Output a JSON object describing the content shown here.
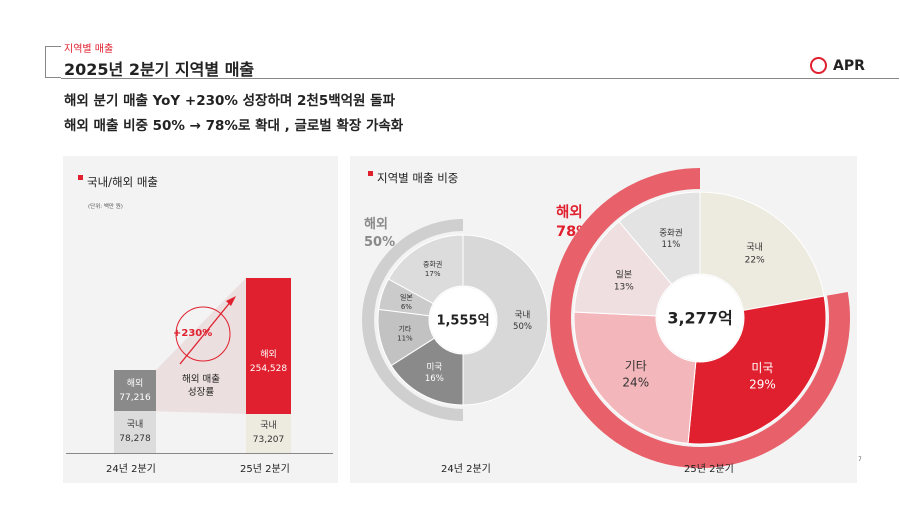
{
  "header": {
    "section_label": "지역별 매출",
    "title": "2025년 2분기 지역별 매출",
    "brand": "APR"
  },
  "headlines": [
    "해외 분기 매출 YoY +230% 성장하며 2천5백억원 돌파",
    "해외 매출 비중 50% → 78%로 확대 , 글로벌 확장 가속화"
  ],
  "colors": {
    "accent": "#e0202e",
    "overseas_prev": "#8a8a8a",
    "domestic_prev": "#dcdcdc",
    "domestic_curr": "#edeae0"
  },
  "left_panel": {
    "title": "국내/해외 매출",
    "unit": "(단위: 백만 원)",
    "growth_badge": "+230%",
    "growth_label_line1": "해외 매출",
    "growth_label_line2": "성장률"
  },
  "right_panel": {
    "title": "지역별 매출 비중",
    "q24_big_label": "해외",
    "q24_big_value": "50%",
    "q24_total": "1,555억",
    "q25_big_label": "해외",
    "q25_big_value": "78%",
    "q25_total": "3,277억"
  },
  "page_number": "7",
  "chart_data": [
    {
      "type": "bar",
      "title": "국내/해외 매출",
      "categories": [
        "24년 2분기",
        "25년 2분기"
      ],
      "series": [
        {
          "name": "국내",
          "values": [
            78278,
            73207
          ]
        },
        {
          "name": "해외",
          "values": [
            77216,
            254528
          ]
        }
      ],
      "value_labels": {
        "국내": [
          "78,278",
          "73,207"
        ],
        "해외": [
          "77,216",
          "254,528"
        ]
      },
      "stacked": true
    },
    {
      "type": "pie",
      "title": "지역별 매출 비중",
      "category": "24년 2분기",
      "slices": [
        {
          "label": "국내",
          "value": 50,
          "text": "50%"
        },
        {
          "label": "미국",
          "value": 16,
          "text": "16%"
        },
        {
          "label": "기타",
          "value": 11,
          "text": "11%"
        },
        {
          "label": "일본",
          "value": 6,
          "text": "6%"
        },
        {
          "label": "중화권",
          "value": 17,
          "text": "17%"
        }
      ]
    },
    {
      "type": "pie",
      "title": "지역별 매출 비중",
      "category": "25년 2분기",
      "slices": [
        {
          "label": "국내",
          "value": 22,
          "text": "22%"
        },
        {
          "label": "미국",
          "value": 29,
          "text": "29%"
        },
        {
          "label": "기타",
          "value": 24,
          "text": "24%"
        },
        {
          "label": "일본",
          "value": 13,
          "text": "13%"
        },
        {
          "label": "중화권",
          "value": 11,
          "text": "11%"
        }
      ]
    }
  ]
}
